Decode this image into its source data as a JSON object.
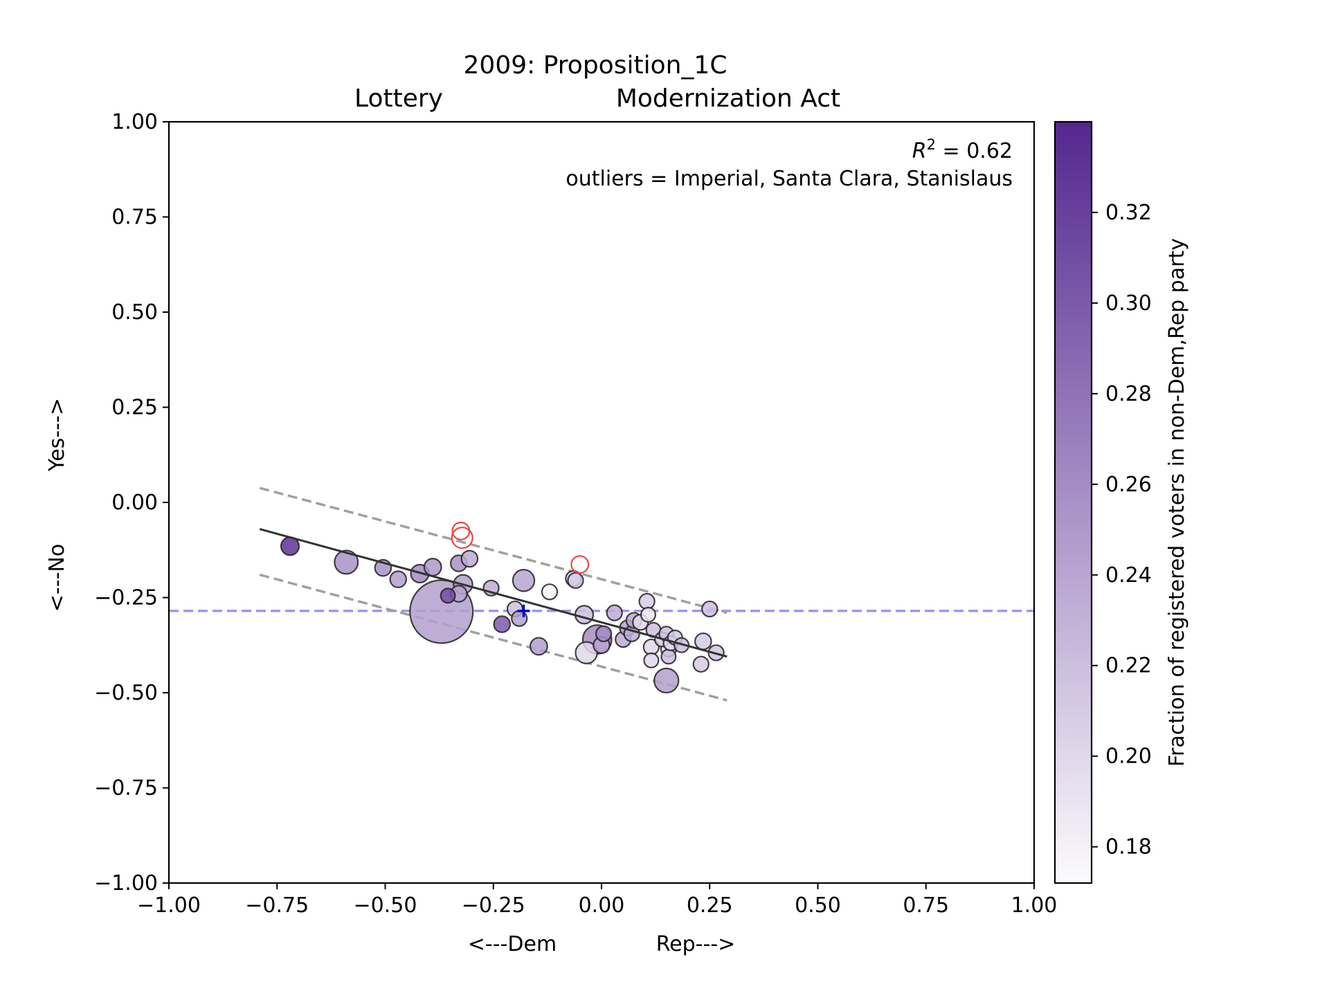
{
  "chart_data": {
    "type": "scatter",
    "title_line1": "2009: Proposition_1C",
    "title_line2_left": "Lottery",
    "title_line2_right": "Modernization Act",
    "xlabel_left": "<---Dem",
    "xlabel_right": "Rep--->",
    "ylabel_bottom": "<---No",
    "ylabel_top": "Yes--->",
    "xlim": [
      -1.0,
      1.0
    ],
    "ylim": [
      -1.0,
      1.0
    ],
    "xticks": [
      -1.0,
      -0.75,
      -0.5,
      -0.25,
      0.0,
      0.25,
      0.5,
      0.75,
      1.0
    ],
    "xtick_labels": [
      "−1.00",
      "−0.75",
      "−0.50",
      "−0.25",
      "0.00",
      "0.25",
      "0.50",
      "0.75",
      "1.00"
    ],
    "yticks": [
      1.0,
      0.75,
      0.5,
      0.25,
      0.0,
      -0.25,
      -0.5,
      -0.75,
      -1.0
    ],
    "ytick_labels": [
      "1.00",
      "0.75",
      "0.50",
      "0.25",
      "0.00",
      "−0.25",
      "−0.50",
      "−0.75",
      "−1.00"
    ],
    "annotation_r2": "R² = 0.62",
    "annotation_r2_prefix": "R",
    "annotation_r2_exp": "2",
    "annotation_r2_suffix": " = 0.62",
    "annotation_outliers": "outliers = Imperial, Santa Clara, Stanislaus",
    "colorbar": {
      "label": "Fraction of registered voters in non-Dem,Rep party",
      "range": [
        0.172,
        0.34
      ],
      "ticks": [
        0.18,
        0.2,
        0.22,
        0.24,
        0.26,
        0.28,
        0.3,
        0.32
      ],
      "tick_labels": [
        "0.18",
        "0.20",
        "0.22",
        "0.24",
        "0.26",
        "0.28",
        "0.30",
        "0.32"
      ],
      "color_low": "#fcfbfd",
      "color_high": "#54278f"
    },
    "fit_line": {
      "x": [
        -0.79,
        0.29
      ],
      "y": [
        -0.07,
        -0.405
      ],
      "color": "#333333"
    },
    "band_upper": {
      "x": [
        -0.79,
        0.29
      ],
      "y": [
        0.038,
        -0.29
      ],
      "color": "#a0a0a0"
    },
    "band_lower": {
      "x": [
        -0.79,
        0.29
      ],
      "y": [
        -0.19,
        -0.52
      ],
      "color": "#a0a0a0"
    },
    "state_average": {
      "x": -0.18,
      "y": -0.285,
      "line_color": "#9999ee",
      "marker_color": "#0000cc"
    },
    "points": [
      {
        "x": -0.72,
        "y": -0.115,
        "v": 0.33,
        "s": 1.0
      },
      {
        "x": -0.59,
        "y": -0.157,
        "v": 0.255,
        "s": 1.3
      },
      {
        "x": -0.505,
        "y": -0.172,
        "v": 0.255,
        "s": 0.9
      },
      {
        "x": -0.47,
        "y": -0.202,
        "v": 0.245,
        "s": 0.9
      },
      {
        "x": -0.42,
        "y": -0.187,
        "v": 0.26,
        "s": 1.0
      },
      {
        "x": -0.39,
        "y": -0.17,
        "v": 0.25,
        "s": 0.95
      },
      {
        "x": -0.37,
        "y": -0.287,
        "v": 0.245,
        "s": 3.5
      },
      {
        "x": -0.355,
        "y": -0.245,
        "v": 0.31,
        "s": 0.8
      },
      {
        "x": -0.33,
        "y": -0.16,
        "v": 0.255,
        "s": 0.9
      },
      {
        "x": -0.33,
        "y": -0.24,
        "v": 0.24,
        "s": 0.9
      },
      {
        "x": -0.32,
        "y": -0.215,
        "v": 0.245,
        "s": 1.05
      },
      {
        "x": -0.305,
        "y": -0.148,
        "v": 0.235,
        "s": 0.9
      },
      {
        "x": -0.255,
        "y": -0.225,
        "v": 0.235,
        "s": 0.85
      },
      {
        "x": -0.23,
        "y": -0.32,
        "v": 0.3,
        "s": 0.9
      },
      {
        "x": -0.2,
        "y": -0.28,
        "v": 0.22,
        "s": 0.85
      },
      {
        "x": -0.19,
        "y": -0.305,
        "v": 0.245,
        "s": 0.85
      },
      {
        "x": -0.18,
        "y": -0.205,
        "v": 0.24,
        "s": 1.2
      },
      {
        "x": -0.145,
        "y": -0.378,
        "v": 0.245,
        "s": 0.95
      },
      {
        "x": -0.12,
        "y": -0.235,
        "v": 0.18,
        "s": 0.85
      },
      {
        "x": -0.065,
        "y": -0.2,
        "v": 0.2,
        "s": 0.85
      },
      {
        "x": -0.06,
        "y": -0.205,
        "v": 0.21,
        "s": 0.85
      },
      {
        "x": -0.04,
        "y": -0.295,
        "v": 0.22,
        "s": 1.0
      },
      {
        "x": -0.035,
        "y": -0.395,
        "v": 0.2,
        "s": 1.2
      },
      {
        "x": -0.01,
        "y": -0.36,
        "v": 0.26,
        "s": 1.6
      },
      {
        "x": 0.0,
        "y": -0.375,
        "v": 0.24,
        "s": 0.9
      },
      {
        "x": 0.005,
        "y": -0.345,
        "v": 0.26,
        "s": 0.85
      },
      {
        "x": 0.03,
        "y": -0.29,
        "v": 0.235,
        "s": 0.85
      },
      {
        "x": 0.05,
        "y": -0.36,
        "v": 0.235,
        "s": 0.85
      },
      {
        "x": 0.06,
        "y": -0.33,
        "v": 0.24,
        "s": 0.85
      },
      {
        "x": 0.07,
        "y": -0.345,
        "v": 0.235,
        "s": 0.85
      },
      {
        "x": 0.075,
        "y": -0.31,
        "v": 0.24,
        "s": 0.85
      },
      {
        "x": 0.09,
        "y": -0.315,
        "v": 0.2,
        "s": 0.85
      },
      {
        "x": 0.105,
        "y": -0.26,
        "v": 0.21,
        "s": 0.85
      },
      {
        "x": 0.108,
        "y": -0.295,
        "v": 0.19,
        "s": 0.8
      },
      {
        "x": 0.115,
        "y": -0.38,
        "v": 0.2,
        "s": 0.85
      },
      {
        "x": 0.115,
        "y": -0.415,
        "v": 0.2,
        "s": 0.8
      },
      {
        "x": 0.12,
        "y": -0.335,
        "v": 0.22,
        "s": 0.8
      },
      {
        "x": 0.14,
        "y": -0.36,
        "v": 0.21,
        "s": 0.8
      },
      {
        "x": 0.15,
        "y": -0.345,
        "v": 0.22,
        "s": 0.8
      },
      {
        "x": 0.155,
        "y": -0.385,
        "v": 0.2,
        "s": 0.85
      },
      {
        "x": 0.155,
        "y": -0.405,
        "v": 0.22,
        "s": 0.8
      },
      {
        "x": 0.16,
        "y": -0.37,
        "v": 0.2,
        "s": 0.8
      },
      {
        "x": 0.17,
        "y": -0.355,
        "v": 0.21,
        "s": 0.8
      },
      {
        "x": 0.185,
        "y": -0.375,
        "v": 0.22,
        "s": 0.8
      },
      {
        "x": 0.15,
        "y": -0.468,
        "v": 0.245,
        "s": 1.35
      },
      {
        "x": 0.235,
        "y": -0.365,
        "v": 0.21,
        "s": 0.9
      },
      {
        "x": 0.23,
        "y": -0.425,
        "v": 0.21,
        "s": 0.85
      },
      {
        "x": 0.25,
        "y": -0.28,
        "v": 0.22,
        "s": 0.85
      },
      {
        "x": 0.265,
        "y": -0.395,
        "v": 0.215,
        "s": 0.85
      }
    ],
    "outliers": [
      {
        "x": -0.325,
        "y": -0.075,
        "s": 0.95,
        "color": "#ee4444"
      },
      {
        "x": -0.322,
        "y": -0.093,
        "s": 1.15,
        "color": "#ee4444"
      },
      {
        "x": -0.05,
        "y": -0.163,
        "s": 0.95,
        "color": "#ee4444"
      }
    ]
  }
}
